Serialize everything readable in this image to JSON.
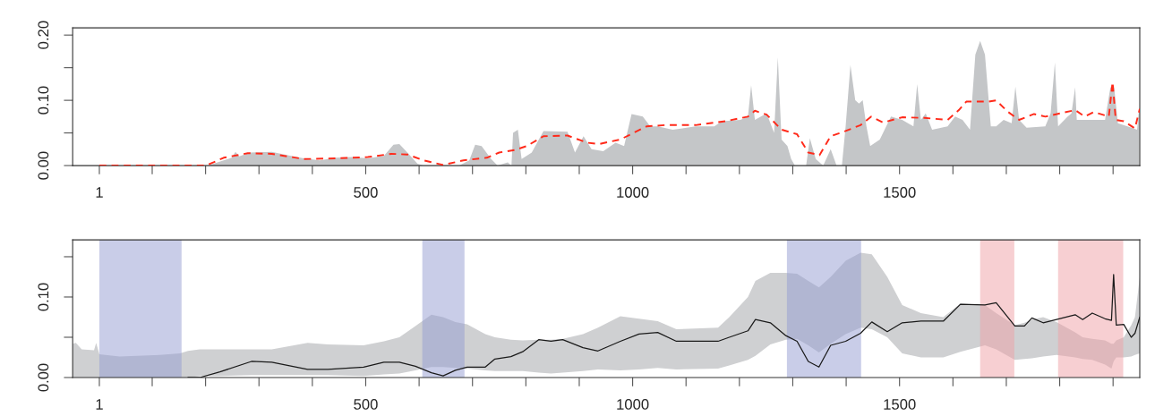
{
  "chart_data": [
    {
      "type": "area",
      "series": [
        {
          "color": "#c4c6c8",
          "x": [
            -49,
            204,
            249,
            256,
            263,
            283,
            324,
            354,
            384,
            414,
            444,
            474,
            504,
            534,
            552,
            563,
            578,
            597,
            608,
            675,
            694,
            705,
            717,
            735,
            747,
            766,
            773,
            776,
            785,
            792,
            811,
            833,
            878,
            892,
            908,
            923,
            945,
            968,
            984,
            998,
            1019,
            1033,
            1047,
            1075,
            1118,
            1153,
            1167,
            1202,
            1216,
            1222,
            1229,
            1251,
            1265,
            1272,
            1279,
            1290,
            1297,
            1304,
            1325,
            1332,
            1343,
            1357,
            1371,
            1382,
            1392,
            1399,
            1408,
            1417,
            1424,
            1431,
            1438,
            1445,
            1463,
            1484,
            1505,
            1526,
            1533,
            1540,
            1549,
            1561,
            1590,
            1604,
            1618,
            1632,
            1642,
            1651,
            1660,
            1671,
            1681,
            1695,
            1710,
            1717,
            1724,
            1738,
            1773,
            1783,
            1791,
            1797,
            1815,
            1822,
            1829,
            1832,
            1857,
            1885,
            1895,
            1902,
            1909,
            1927,
            1945,
            1949
          ],
          "values": [
            0,
            0,
            0.012,
            0.021,
            0.014,
            0.02,
            0.021,
            0.016,
            0.011,
            0.008,
            0.012,
            0.013,
            0.011,
            0.015,
            0.032,
            0.033,
            0.02,
            0.003,
            0,
            0,
            0.008,
            0.032,
            0.03,
            0.01,
            0,
            0.005,
            0,
            0.05,
            0.055,
            0.01,
            0.02,
            0.053,
            0.052,
            0.02,
            0.045,
            0.025,
            0.022,
            0.035,
            0.03,
            0.079,
            0.075,
            0.06,
            0.06,
            0.055,
            0.06,
            0.06,
            0.068,
            0.07,
            0.075,
            0.123,
            0.07,
            0.08,
            0.05,
            0.166,
            0.04,
            0.03,
            0.01,
            0,
            0,
            0.042,
            0.01,
            0,
            0.025,
            0,
            0,
            0.06,
            0.154,
            0.1,
            0.095,
            0.1,
            0.06,
            0.03,
            0.04,
            0.075,
            0.07,
            0.06,
            0.125,
            0.07,
            0.08,
            0.055,
            0.06,
            0.075,
            0.07,
            0.055,
            0.17,
            0.191,
            0.17,
            0.06,
            0.06,
            0.07,
            0.065,
            0.121,
            0.07,
            0.058,
            0.06,
            0.08,
            0.158,
            0.06,
            0.075,
            0.08,
            0.12,
            0.07,
            0.07,
            0.07,
            0.12,
            0.12,
            0.065,
            0.06,
            0.055,
            0.09
          ]
        },
        {
          "type": "line",
          "line_style": "dashed",
          "color": "#ff2a1a",
          "x": [
            1,
            200,
            215,
            234,
            279,
            324,
            384,
            444,
            504,
            548,
            578,
            608,
            645,
            683,
            727,
            750,
            780,
            802,
            833,
            878,
            915,
            937,
            977,
            1026,
            1061,
            1118,
            1174,
            1216,
            1229,
            1251,
            1279,
            1308,
            1329,
            1350,
            1371,
            1399,
            1427,
            1447,
            1469,
            1505,
            1547,
            1590,
            1611,
            1625,
            1667,
            1681,
            1702,
            1724,
            1752,
            1773,
            1801,
            1829,
            1847,
            1864,
            1892,
            1899,
            1905,
            1920,
            1941,
            1950
          ],
          "values": [
            0,
            0,
            0.005,
            0.012,
            0.019,
            0.018,
            0.01,
            0.011,
            0.013,
            0.018,
            0.017,
            0.008,
            0.001,
            0.008,
            0.012,
            0.02,
            0.024,
            0.03,
            0.045,
            0.046,
            0.035,
            0.033,
            0.04,
            0.06,
            0.062,
            0.062,
            0.068,
            0.075,
            0.084,
            0.078,
            0.055,
            0.048,
            0.02,
            0.016,
            0.045,
            0.053,
            0.062,
            0.075,
            0.066,
            0.074,
            0.073,
            0.07,
            0.085,
            0.098,
            0.098,
            0.1,
            0.083,
            0.07,
            0.079,
            0.075,
            0.08,
            0.085,
            0.075,
            0.082,
            0.075,
            0.128,
            0.07,
            0.068,
            0.057,
            0.087
          ]
        }
      ],
      "xlim": [
        -49,
        1950
      ],
      "xticks": [
        1,
        {
          "value": 100,
          "label": null
        },
        {
          "value": 200,
          "label": null
        },
        {
          "value": 300,
          "label": null
        },
        {
          "value": 400,
          "label": null
        },
        500,
        {
          "value": 600,
          "label": null
        },
        {
          "value": 700,
          "label": null
        },
        {
          "value": 800,
          "label": null
        },
        {
          "value": 900,
          "label": null
        },
        1000,
        {
          "value": 1100,
          "label": null
        },
        {
          "value": 1200,
          "label": null
        },
        {
          "value": 1300,
          "label": null
        },
        {
          "value": 1400,
          "label": null
        },
        1500,
        {
          "value": 1600,
          "label": null
        },
        {
          "value": 1700,
          "label": null
        },
        {
          "value": 1800,
          "label": null
        },
        {
          "value": 1900,
          "label": null
        }
      ],
      "ylim": [
        0,
        0.211
      ],
      "yticks": [
        {
          "value": 0,
          "label": "0.00"
        },
        {
          "value": 0.05,
          "label": null
        },
        {
          "value": 0.1,
          "label": "0.10"
        },
        {
          "value": 0.15,
          "label": null
        },
        {
          "value": 0.2,
          "label": "0.20"
        }
      ],
      "grid": false,
      "legend": false
    },
    {
      "type": "line",
      "series": [
        {
          "color": "#1a1a1a",
          "x": [
            -49,
            -43,
            -32,
            -9,
            -5,
            1,
            39,
            114,
            152,
            167,
            189,
            227,
            286,
            324,
            391,
            429,
            496,
            534,
            563,
            593,
            623,
            645,
            668,
            690,
            724,
            742,
            772,
            794,
            824,
            847,
            869,
            907,
            935,
            977,
            1012,
            1047,
            1082,
            1160,
            1181,
            1216,
            1230,
            1258,
            1287,
            1308,
            1329,
            1349,
            1371,
            1399,
            1427,
            1448,
            1477,
            1505,
            1540,
            1582,
            1614,
            1660,
            1681,
            1716,
            1734,
            1748,
            1769,
            1794,
            1829,
            1843,
            1861,
            1885,
            1897,
            1901,
            1906,
            1920,
            1934,
            1941,
            1950
          ],
          "values": [
            null,
            null,
            null,
            null,
            null,
            null,
            null,
            null,
            null,
            0,
            0,
            0.007,
            0.02,
            0.019,
            0.01,
            0.01,
            0.013,
            0.019,
            0.019,
            0.014,
            0.006,
            0.002,
            0.009,
            0.013,
            0.013,
            0.023,
            0.026,
            0.032,
            0.047,
            0.045,
            0.047,
            0.037,
            0.033,
            0.045,
            0.054,
            0.056,
            0.045,
            0.045,
            0.05,
            0.058,
            0.072,
            0.068,
            0.052,
            0.045,
            0.02,
            0.013,
            0.04,
            0.045,
            0.055,
            0.069,
            0.057,
            0.068,
            0.07,
            0.07,
            0.091,
            0.09,
            0.093,
            0.064,
            0.064,
            0.074,
            0.068,
            0.072,
            0.078,
            0.072,
            0.08,
            0.073,
            0.071,
            0.128,
            0.065,
            0.066,
            0.05,
            0.055,
            0.075
          ],
          "lower": [
            0,
            0,
            0,
            0,
            0,
            0,
            0,
            0,
            0,
            0,
            0.002,
            0.002,
            0.003,
            0.003,
            0.003,
            0.003,
            0.002,
            0.004,
            0.005,
            0.009,
            0.013,
            0.013,
            0.012,
            0.011,
            0.009,
            0.008,
            0.008,
            0.008,
            0.006,
            0.005,
            0.006,
            0.008,
            0.01,
            0.009,
            0.01,
            0.012,
            0.01,
            0.011,
            0.015,
            0.022,
            0.027,
            0.041,
            0.047,
            0.048,
            0.04,
            0.031,
            0.042,
            0.054,
            0.062,
            0.06,
            0.05,
            0.03,
            0.025,
            0.025,
            0.032,
            0.04,
            0.035,
            0.022,
            0.023,
            0.024,
            0.026,
            0.028,
            0.025,
            0.023,
            0.022,
            0.016,
            0.011,
            0.02,
            0.025,
            0.025,
            0.026,
            0.028,
            0.03
          ],
          "upper": [
            0.042,
            0.043,
            0.035,
            0.034,
            0.043,
            0.029,
            0.026,
            0.028,
            0.03,
            0.033,
            0.035,
            0.035,
            0.035,
            0.035,
            0.043,
            0.041,
            0.04,
            0.045,
            0.05,
            0.064,
            0.078,
            0.075,
            0.069,
            0.066,
            0.054,
            0.05,
            0.047,
            0.046,
            0.047,
            0.047,
            0.048,
            0.054,
            0.062,
            0.076,
            0.073,
            0.07,
            0.06,
            0.062,
            0.075,
            0.1,
            0.12,
            0.13,
            0.13,
            0.129,
            0.12,
            0.112,
            0.125,
            0.145,
            0.155,
            0.153,
            0.125,
            0.09,
            0.08,
            0.075,
            0.092,
            0.09,
            0.08,
            0.065,
            0.068,
            0.072,
            0.075,
            0.069,
            0.056,
            0.05,
            0.048,
            0.046,
            0.042,
            0.042,
            0.046,
            0.05,
            0.065,
            0.075,
            0.125
          ]
        }
      ],
      "bands": [
        {
          "axis": "x",
          "from": 1,
          "to": 155,
          "color": "#939bd1"
        },
        {
          "axis": "x",
          "from": 606,
          "to": 685,
          "color": "#939bd1"
        },
        {
          "axis": "x",
          "from": 1289,
          "to": 1428,
          "color": "#939bd1"
        },
        {
          "axis": "x",
          "from": 1651,
          "to": 1715,
          "color": "#f0a0a6"
        },
        {
          "axis": "x",
          "from": 1797,
          "to": 1919,
          "color": "#f0a0a6"
        }
      ],
      "xlim": [
        -49,
        1950
      ],
      "xticks": [
        1,
        {
          "value": 100,
          "label": null
        },
        {
          "value": 200,
          "label": null
        },
        {
          "value": 300,
          "label": null
        },
        {
          "value": 400,
          "label": null
        },
        500,
        {
          "value": 600,
          "label": null
        },
        {
          "value": 700,
          "label": null
        },
        {
          "value": 800,
          "label": null
        },
        {
          "value": 900,
          "label": null
        },
        1000,
        {
          "value": 1100,
          "label": null
        },
        {
          "value": 1200,
          "label": null
        },
        {
          "value": 1300,
          "label": null
        },
        {
          "value": 1400,
          "label": null
        },
        1500,
        {
          "value": 1600,
          "label": null
        },
        {
          "value": 1700,
          "label": null
        },
        {
          "value": 1800,
          "label": null
        },
        {
          "value": 1900,
          "label": null
        }
      ],
      "ylim": [
        0,
        0.171
      ],
      "yticks": [
        {
          "value": 0,
          "label": "0.00"
        },
        {
          "value": 0.05,
          "label": null
        },
        {
          "value": 0.1,
          "label": "0.10"
        },
        {
          "value": 0.15,
          "label": null
        }
      ],
      "grid": false,
      "legend": false
    }
  ]
}
